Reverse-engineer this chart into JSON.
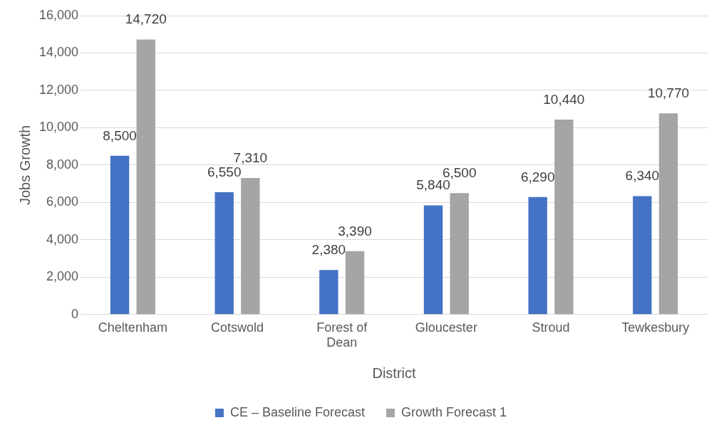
{
  "chart_data": {
    "type": "bar",
    "xlabel": "District",
    "ylabel": "Jobs Growth",
    "categories": [
      "Cheltenham",
      "Cotswold",
      "Forest of Dean",
      "Gloucester",
      "Stroud",
      "Tewkesbury"
    ],
    "series": [
      {
        "name": "CE – Baseline Forecast",
        "color": "#4472c4",
        "values": [
          8500,
          6550,
          2380,
          5840,
          6290,
          6340
        ],
        "value_labels": [
          "8,500",
          "6,550",
          "2,380",
          "5,840",
          "6,290",
          "6,340"
        ]
      },
      {
        "name": "Growth Forecast 1",
        "color": "#a5a5a5",
        "values": [
          14720,
          7310,
          3390,
          6500,
          10440,
          10770
        ],
        "value_labels": [
          "14,720",
          "7,310",
          "3,390",
          "6,500",
          "10,440",
          "10,770"
        ]
      }
    ],
    "ylim": [
      0,
      16000
    ],
    "yticks": [
      0,
      {
        "value": 2000,
        "label": "2,000"
      },
      {
        "value": 4000,
        "label": "4,000"
      },
      {
        "value": 6000,
        "label": "6,000"
      },
      {
        "value": 8000,
        "label": "8,000"
      },
      {
        "value": 10000,
        "label": "10,000"
      },
      {
        "value": 12000,
        "label": "12,000"
      },
      {
        "value": 14000,
        "label": "14,000"
      },
      {
        "value": 16000,
        "label": "16,000"
      }
    ],
    "grid": "y",
    "legend": "bottom"
  }
}
